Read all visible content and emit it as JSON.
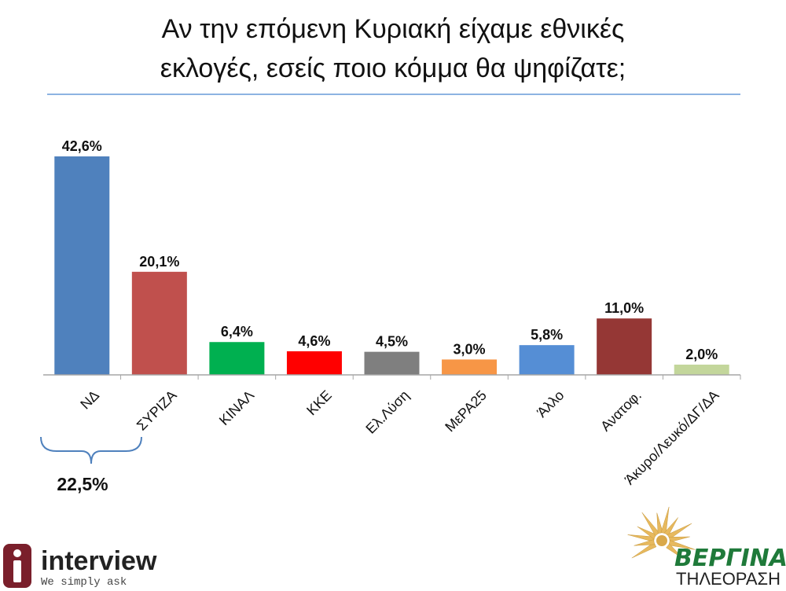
{
  "title": {
    "line1": "Αν την επόμενη Κυριακή είχαμε εθνικές",
    "line2": "εκλογές, εσείς ποιο κόμμα θα ψηφίζατε;"
  },
  "chart_data": {
    "type": "bar",
    "title": "Αν την επόμενη Κυριακή είχαμε εθνικές εκλογές, εσείς ποιο κόμμα θα ψηφίζατε;",
    "categories": [
      "ΝΔ",
      "ΣΥΡΙΖΑ",
      "ΚΙΝΑΛ",
      "ΚΚΕ",
      "Ελ.Λύση",
      "ΜεΡΑ25",
      "Άλλο",
      "Ανατοφ.",
      "Άκυρο/Λευκό/ΔΓ/ΔΑ"
    ],
    "values": [
      42.6,
      20.1,
      6.4,
      4.6,
      4.5,
      3.0,
      5.8,
      11.0,
      2.0
    ],
    "value_labels": [
      "42,6%",
      "20,1%",
      "6,4%",
      "4,6%",
      "4,5%",
      "3,0%",
      "5,8%",
      "11,0%",
      "2,0%"
    ],
    "colors": [
      "#4f81bd",
      "#c0504d",
      "#00b050",
      "#ff0000",
      "#7f7f7f",
      "#f79646",
      "#558ed5",
      "#953735",
      "#c3d69b"
    ],
    "xlabel": "",
    "ylabel": "",
    "grid": false,
    "legend": "none",
    "annotations": [
      {
        "text": "22,5%",
        "spans": [
          "ΝΔ",
          "ΣΥΡΙΖΑ"
        ]
      }
    ]
  },
  "annotation": {
    "lead_gap": "22,5%"
  },
  "logos": {
    "interview": {
      "name": "interview",
      "tagline": "We simply ask"
    },
    "vergina": {
      "name": "ΒΕΡΓΙΝΑ",
      "sub": "ΤΗΛΕΟΡΑΣΗ"
    }
  }
}
